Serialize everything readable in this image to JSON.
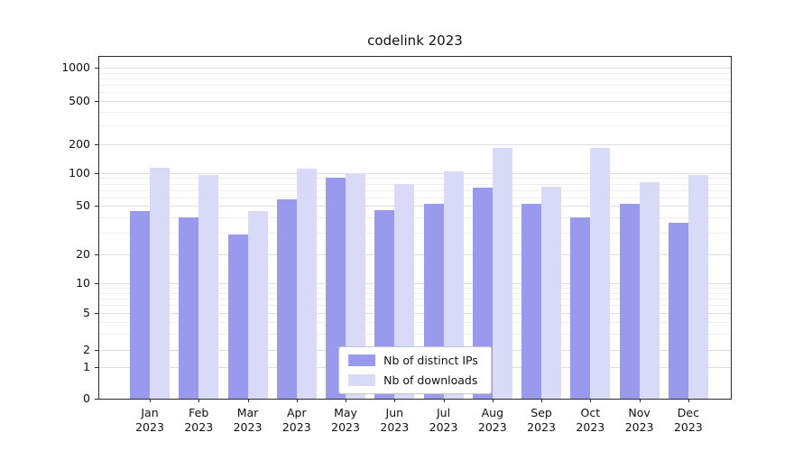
{
  "chart_data": {
    "type": "bar",
    "title": "codelink 2023",
    "x_months": [
      "Jan",
      "Feb",
      "Mar",
      "Apr",
      "May",
      "Jun",
      "Jul",
      "Aug",
      "Sep",
      "Oct",
      "Nov",
      "Dec"
    ],
    "x_year": "2023",
    "yscale": "symlog",
    "yticks": [
      0,
      1,
      2,
      5,
      10,
      20,
      50,
      100,
      200,
      500,
      1000
    ],
    "ylim": [
      0,
      1000
    ],
    "grid": true,
    "legend_position": "lower center",
    "series": [
      {
        "name": "Nb of distinct IPs",
        "color": "#9999ee",
        "values": [
          45,
          40,
          29,
          57,
          90,
          46,
          52,
          73,
          52,
          40,
          52,
          36
        ]
      },
      {
        "name": "Nb of downloads",
        "color": "#d9d9f8",
        "values": [
          115,
          97,
          45,
          112,
          100,
          80,
          105,
          185,
          75,
          185,
          83,
          97
        ]
      }
    ]
  }
}
